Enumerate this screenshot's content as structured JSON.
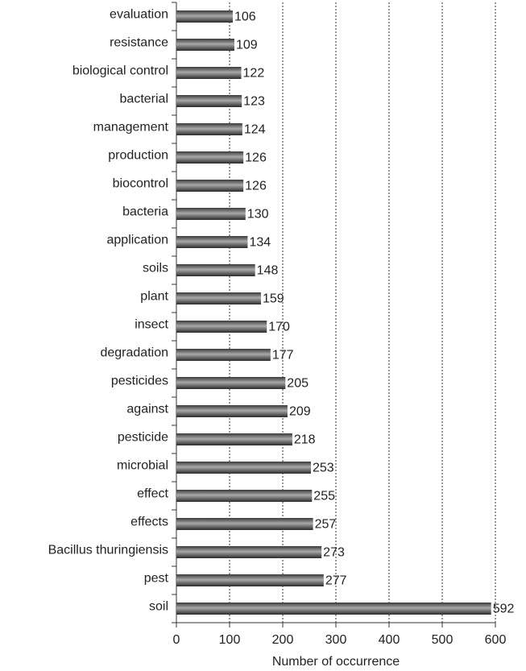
{
  "chart_data": {
    "type": "bar",
    "orientation": "horizontal",
    "categories": [
      "evaluation",
      "resistance",
      "biological control",
      "bacterial",
      "management",
      "production",
      "biocontrol",
      "bacteria",
      "application",
      "soils",
      "plant",
      "insect",
      "degradation",
      "pesticides",
      "against",
      "pesticide",
      "microbial",
      "effect",
      "effects",
      "Bacillus thuringiensis",
      "pest",
      "soil"
    ],
    "values": [
      106,
      109,
      122,
      123,
      124,
      126,
      126,
      130,
      134,
      148,
      159,
      170,
      177,
      205,
      209,
      218,
      253,
      255,
      257,
      273,
      277,
      592
    ],
    "color": "#555555",
    "xlabel": "Number of occurrence",
    "xlim": [
      0,
      600
    ],
    "xticks": [
      0,
      100,
      200,
      300,
      400,
      500,
      600
    ],
    "grid": true
  }
}
